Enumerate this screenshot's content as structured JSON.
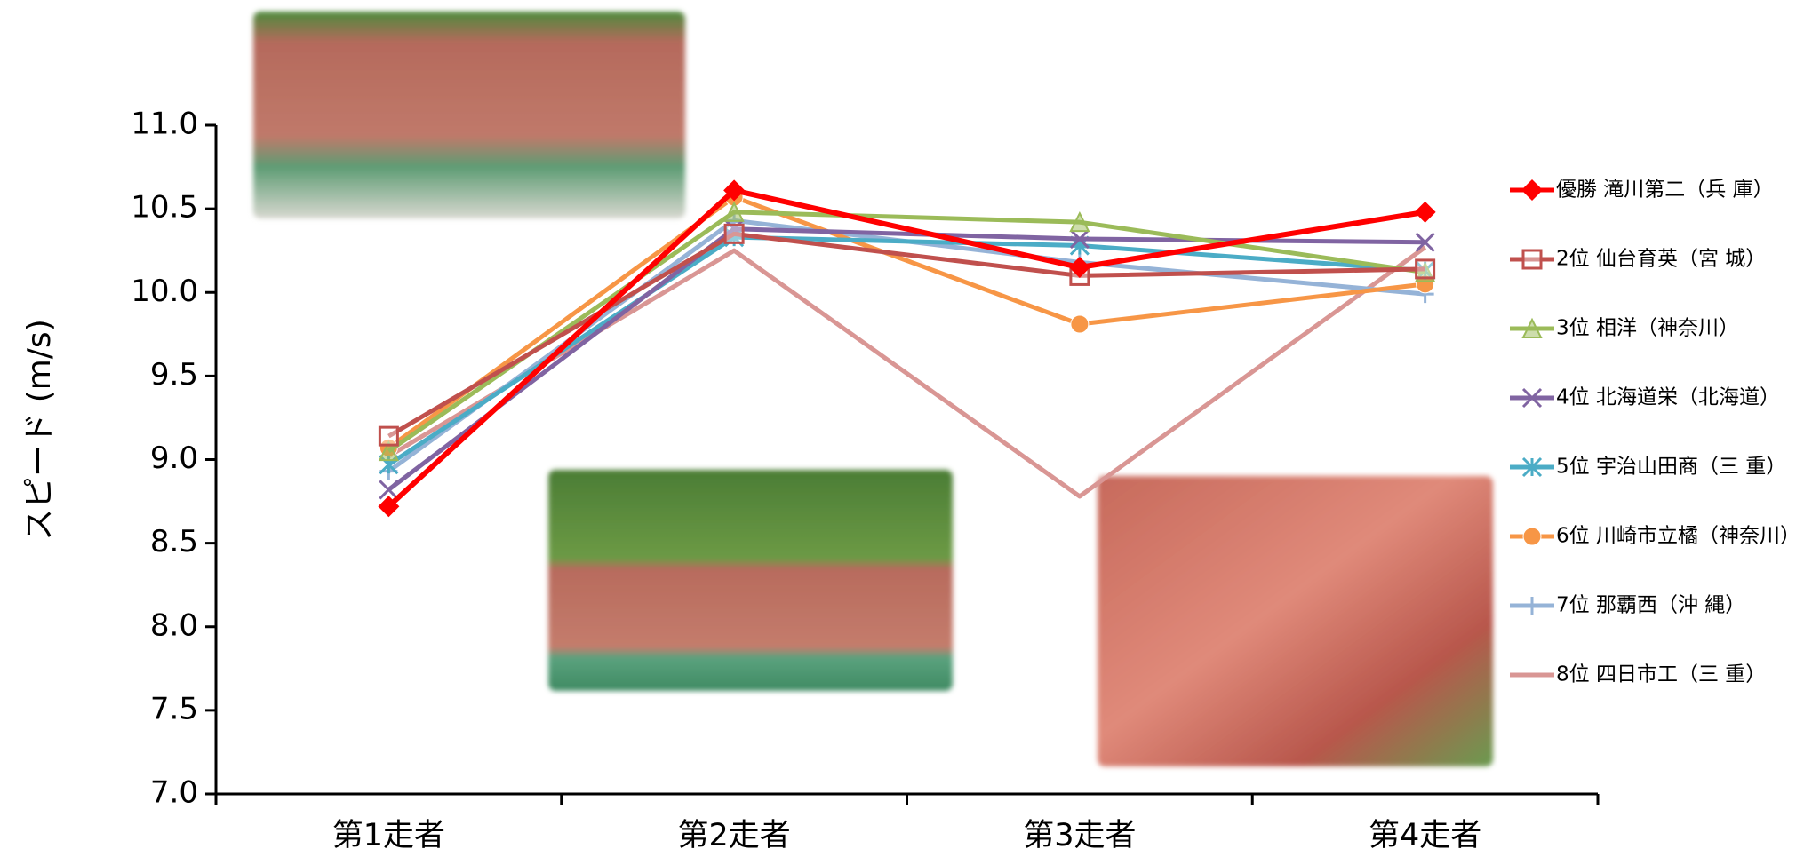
{
  "chart_data": {
    "type": "line",
    "y_label": "スピード (m/s)",
    "categories": [
      "第1走者",
      "第2走者",
      "第3走者",
      "第4走者"
    ],
    "ylim": [
      7,
      11
    ],
    "yticks": [
      {
        "value": 7,
        "label": "7.0"
      },
      7.5,
      {
        "value": 8,
        "label": "8.0"
      },
      8.5,
      {
        "value": 9,
        "label": "9.0"
      },
      9.5,
      {
        "value": 10,
        "label": "10.0"
      },
      10.5,
      {
        "value": 11,
        "label": "11.0"
      }
    ],
    "series": [
      {
        "name": "優勝 滝川第二（兵 庫）",
        "color": "#ff0000",
        "marker": "diamond",
        "values": [
          8.72,
          10.61,
          10.15,
          10.48
        ]
      },
      {
        "name": "2位 仙台育英（宮 城）",
        "color": "#c0504d",
        "marker": "square",
        "values": [
          9.14,
          10.35,
          10.1,
          10.14
        ]
      },
      {
        "name": "3位 相洋（神奈川）",
        "color": "#9bbb59",
        "marker": "triangle",
        "values": [
          9.05,
          10.48,
          10.42,
          10.12
        ]
      },
      {
        "name": "4位 北海道栄（北海道）",
        "color": "#8064a2",
        "marker": "x",
        "values": [
          8.82,
          10.38,
          10.32,
          10.3
        ]
      },
      {
        "name": "5位 宇治山田商（三 重）",
        "color": "#4bacc6",
        "marker": "star",
        "values": [
          8.97,
          10.33,
          10.28,
          10.13
        ]
      },
      {
        "name": "6位 川崎市立橘（神奈川）",
        "color": "#f79646",
        "marker": "circle",
        "values": [
          9.07,
          10.57,
          9.81,
          10.05
        ]
      },
      {
        "name": "7位 那覇西（沖 縄）",
        "color": "#95b3d7",
        "marker": "plus",
        "values": [
          8.93,
          10.43,
          10.18,
          9.99
        ]
      },
      {
        "name": "8位 四日市工（三 重）",
        "color": "#d99694",
        "marker": "none",
        "values": [
          9.02,
          10.25,
          8.78,
          10.27
        ]
      }
    ]
  }
}
